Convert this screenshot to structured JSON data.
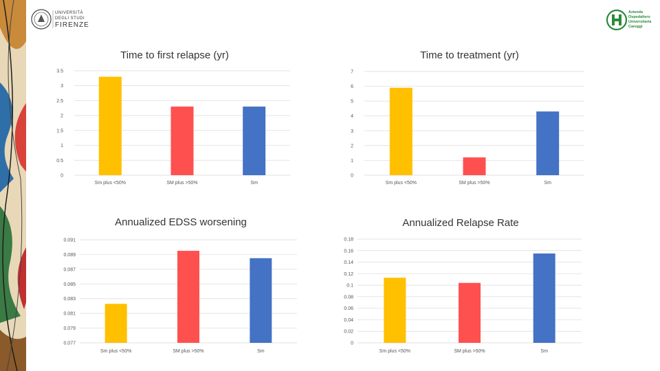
{
  "header": {
    "university": [
      "UNIVERSITÀ",
      "DEGLI STUDI",
      "FIRENZE"
    ],
    "hospital": [
      "Azienda",
      "Ospedaliero",
      "Universitaria",
      "Careggi"
    ]
  },
  "colors": {
    "yellow": "#FFC000",
    "red": "#FF5050",
    "blue": "#4472C4"
  },
  "chart_data": [
    {
      "type": "bar",
      "title": "Time to first relapse (yr)",
      "categories": [
        "Sm plus <50%",
        "SM plus >50%",
        "Sm"
      ],
      "values": [
        3.3,
        2.3,
        2.3
      ],
      "ylim": [
        0,
        3.5
      ],
      "ticks": [
        "0",
        "0.5",
        "1",
        "1.5",
        "2",
        "2.5",
        "3",
        "3.5"
      ]
    },
    {
      "type": "bar",
      "title": "Time to treatment (yr)",
      "categories": [
        "Sm plus <50%",
        "SM plus >50%",
        "Sm"
      ],
      "values": [
        5.9,
        1.2,
        4.3
      ],
      "ylim": [
        0,
        7
      ],
      "ticks": [
        "0",
        "1",
        "2",
        "3",
        "4",
        "5",
        "6",
        "7"
      ]
    },
    {
      "type": "bar",
      "title": "Annualized EDSS worsening",
      "categories": [
        "Sm plus <50%",
        "SM plus >50%",
        "Sm"
      ],
      "values": [
        0.0823,
        0.0895,
        0.0885
      ],
      "ylim": [
        0.077,
        0.091
      ],
      "ticks": [
        "0.077",
        "0.079",
        "0.081",
        "0.083",
        "0.085",
        "0.087",
        "0.089",
        "0.091"
      ]
    },
    {
      "type": "bar",
      "title": "Annualized Relapse Rate",
      "categories": [
        "Sm plus <50%",
        "SM plus >50%",
        "Sm"
      ],
      "values": [
        0.113,
        0.104,
        0.155
      ],
      "ylim": [
        0,
        0.18
      ],
      "ticks": [
        "0",
        "0.02",
        "0.04",
        "0.06",
        "0.08",
        "0.1",
        "0.12",
        "0.14",
        "0.16",
        "0.18"
      ]
    }
  ]
}
